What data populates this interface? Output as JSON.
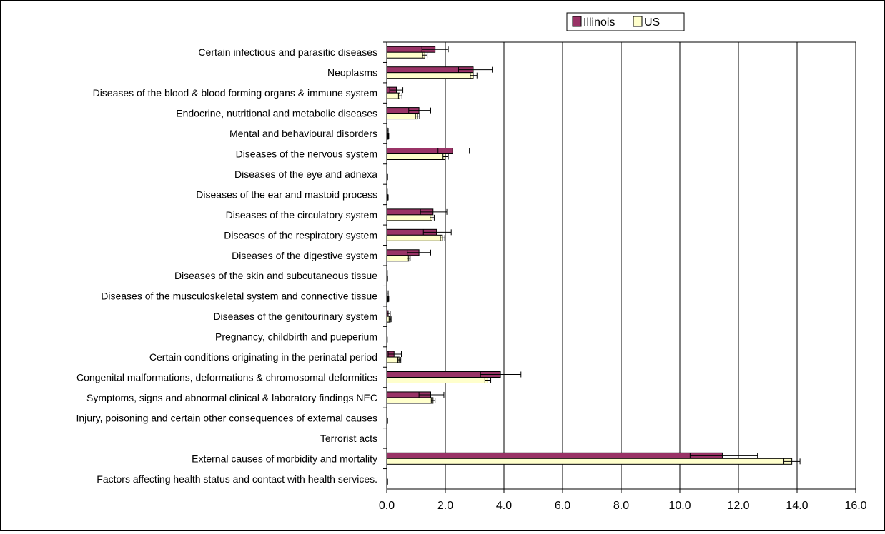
{
  "chart_data": {
    "type": "bar",
    "orientation": "horizontal",
    "categories": [
      "Certain infectious and parasitic diseases",
      "Neoplasms",
      "Diseases of the blood & blood forming organs & immune system",
      "Endocrine, nutritional and metabolic diseases",
      "Mental and behavioural disorders",
      "Diseases of the nervous system",
      "Diseases of the eye and adnexa",
      "Diseases of the ear and mastoid process",
      "Diseases of the circulatory system",
      "Diseases of the respiratory system",
      "Diseases of the digestive system",
      "Diseases of the skin and subcutaneous tissue",
      "Diseases of the musculoskeletal system and connective tissue",
      "Diseases of the genitourinary system",
      "Pregnancy, childbirth and pueperium",
      "Certain conditions originating in the perinatal period",
      "Congenital malformations, deformations & chromosomal deformities",
      "Symptoms, signs and abnormal clinical & laboratory findings NEC",
      "Injury, poisoning and certain other consequences of external causes",
      "Terrorist acts",
      "External causes of morbidity and mortality",
      "Factors affecting health status and contact with health services."
    ],
    "series": [
      {
        "name": "Illinois",
        "color": "#993366",
        "values": [
          1.65,
          2.95,
          0.33,
          1.1,
          0.02,
          2.25,
          0.0,
          0.0,
          1.58,
          1.7,
          1.1,
          0.0,
          0.0,
          0.05,
          0.0,
          0.25,
          3.88,
          1.5,
          0.0,
          0.0,
          11.45,
          0.0
        ],
        "error_low": [
          1.2,
          2.45,
          0.1,
          0.75,
          0.0,
          1.75,
          0.0,
          0.0,
          1.15,
          1.25,
          0.7,
          0.0,
          0.0,
          0.0,
          0.0,
          0.05,
          3.2,
          1.1,
          0.0,
          0.0,
          10.35,
          0.0
        ],
        "error_high": [
          2.1,
          3.6,
          0.55,
          1.5,
          0.05,
          2.82,
          0.0,
          0.02,
          2.05,
          2.2,
          1.5,
          0.02,
          0.05,
          0.12,
          0.0,
          0.5,
          4.58,
          1.95,
          0.0,
          0.0,
          12.65,
          0.0
        ]
      },
      {
        "name": "US",
        "color": "#ffffcc",
        "values": [
          1.3,
          2.95,
          0.45,
          1.05,
          0.05,
          2.0,
          0.02,
          0.03,
          1.55,
          1.9,
          0.75,
          0.02,
          0.05,
          0.12,
          0.01,
          0.42,
          3.45,
          1.58,
          0.02,
          0.0,
          13.82,
          0.02
        ],
        "error_low": [
          1.22,
          2.85,
          0.4,
          0.98,
          0.03,
          1.92,
          0.0,
          0.01,
          1.48,
          1.83,
          0.7,
          0.0,
          0.03,
          0.08,
          0.0,
          0.38,
          3.35,
          1.52,
          0.0,
          0.0,
          13.55,
          0.0
        ],
        "error_high": [
          1.38,
          3.08,
          0.52,
          1.12,
          0.07,
          2.1,
          0.03,
          0.05,
          1.62,
          1.98,
          0.8,
          0.03,
          0.07,
          0.15,
          0.02,
          0.48,
          3.55,
          1.65,
          0.03,
          0.0,
          14.1,
          0.03
        ]
      }
    ],
    "x_ticks": [
      "0.0",
      "2.0",
      "4.0",
      "6.0",
      "8.0",
      "10.0",
      "12.0",
      "14.0",
      "16.0"
    ],
    "xlim": [
      0,
      16
    ],
    "grid": "vertical",
    "legend": {
      "placement": "top-right",
      "items": [
        "Illinois",
        "US"
      ]
    },
    "title": "",
    "xlabel": "",
    "ylabel": ""
  }
}
